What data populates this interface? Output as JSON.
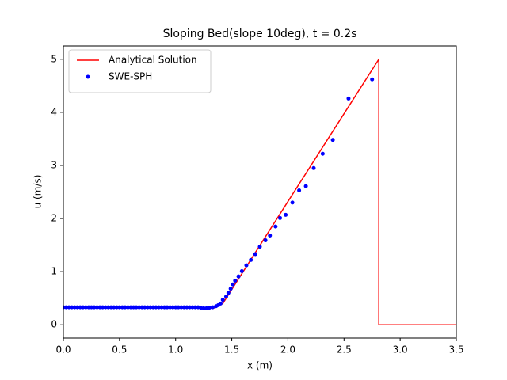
{
  "chart_data": {
    "type": "line",
    "title": "Sloping Bed(slope 10deg), t = 0.2s",
    "xlabel": "x (m)",
    "ylabel": "u (m/s)",
    "xlim": [
      0,
      3.5
    ],
    "ylim": [
      -0.25,
      5.25
    ],
    "xticks": [
      {
        "value": 0,
        "label": "0.0"
      },
      {
        "value": 0.5,
        "label": "0.5"
      },
      {
        "value": 1,
        "label": "1.0"
      },
      {
        "value": 1.5,
        "label": "1.5"
      },
      {
        "value": 2,
        "label": "2.0"
      },
      {
        "value": 2.5,
        "label": "2.5"
      },
      {
        "value": 3,
        "label": "3.0"
      },
      {
        "value": 3.5,
        "label": "3.5"
      }
    ],
    "yticks": [
      0,
      1,
      2,
      3,
      4,
      5
    ],
    "grid": false,
    "legend": "upper-left",
    "series": [
      {
        "name": "Analytical Solution",
        "style": "line",
        "color": "#ff0000",
        "x": [
          0,
          1.2,
          1.27,
          1.35,
          1.42,
          2.81,
          2.81,
          3.5
        ],
        "values": [
          0.33,
          0.33,
          0.3,
          0.32,
          0.4,
          5.0,
          0,
          0
        ]
      },
      {
        "name": "SWE-SPH",
        "style": "scatter",
        "color": "#0000ff",
        "x": [
          0,
          0.025,
          0.05,
          0.075,
          0.1,
          0.125,
          0.15,
          0.175,
          0.2,
          0.225,
          0.25,
          0.275,
          0.3,
          0.325,
          0.35,
          0.375,
          0.4,
          0.425,
          0.45,
          0.475,
          0.5,
          0.525,
          0.55,
          0.575,
          0.6,
          0.625,
          0.65,
          0.675,
          0.7,
          0.725,
          0.75,
          0.775,
          0.8,
          0.825,
          0.85,
          0.875,
          0.9,
          0.925,
          0.95,
          0.975,
          1.0,
          1.025,
          1.05,
          1.075,
          1.1,
          1.125,
          1.15,
          1.175,
          1.2,
          1.225,
          1.25,
          1.275,
          1.3,
          1.33,
          1.36,
          1.38,
          1.4,
          1.42,
          1.45,
          1.47,
          1.49,
          1.51,
          1.53,
          1.56,
          1.59,
          1.63,
          1.67,
          1.71,
          1.75,
          1.8,
          1.84,
          1.89,
          1.93,
          1.98,
          2.04,
          2.1,
          2.16,
          2.23,
          2.31,
          2.4,
          2.54,
          2.75
        ],
        "values": [
          0.33,
          0.33,
          0.33,
          0.33,
          0.33,
          0.33,
          0.33,
          0.33,
          0.33,
          0.33,
          0.33,
          0.33,
          0.33,
          0.33,
          0.33,
          0.33,
          0.33,
          0.33,
          0.33,
          0.33,
          0.33,
          0.33,
          0.33,
          0.33,
          0.33,
          0.33,
          0.33,
          0.33,
          0.33,
          0.33,
          0.33,
          0.33,
          0.33,
          0.33,
          0.33,
          0.33,
          0.33,
          0.33,
          0.33,
          0.33,
          0.33,
          0.33,
          0.33,
          0.33,
          0.33,
          0.33,
          0.33,
          0.33,
          0.33,
          0.32,
          0.31,
          0.31,
          0.32,
          0.33,
          0.35,
          0.37,
          0.4,
          0.47,
          0.53,
          0.6,
          0.68,
          0.76,
          0.83,
          0.91,
          1.01,
          1.12,
          1.22,
          1.33,
          1.47,
          1.59,
          1.68,
          1.85,
          2.01,
          2.07,
          2.3,
          2.53,
          2.61,
          2.95,
          3.22,
          3.48,
          4.26,
          4.62
        ]
      }
    ]
  }
}
